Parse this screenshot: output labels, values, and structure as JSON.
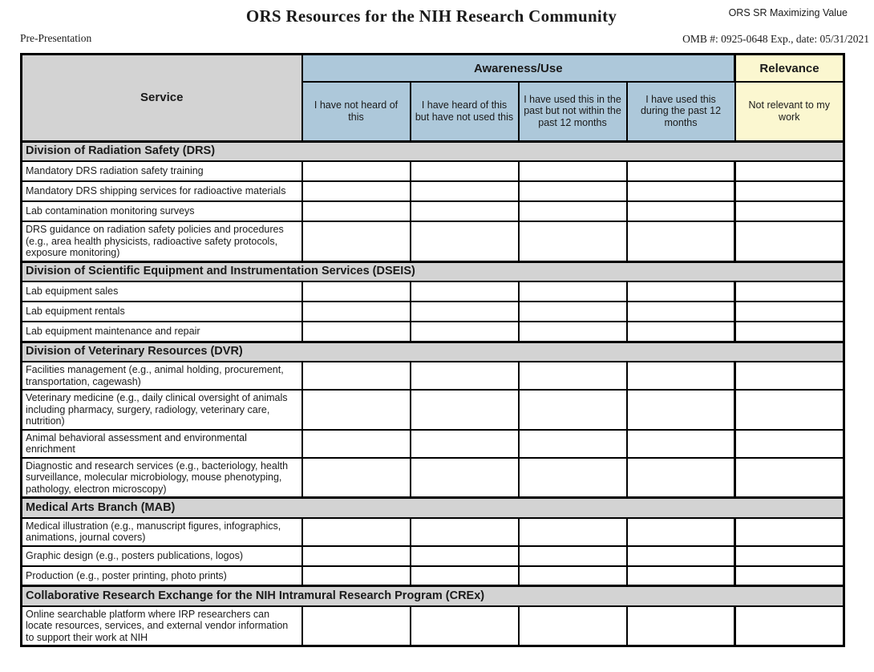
{
  "meta": {
    "pre_label": "Pre-Presentation",
    "title": "ORS Resources for the NIH Research Community",
    "corner_label": "ORS SR Maximizing Value",
    "omb": "OMB #: 0925-0648 Exp., date: 05/31/2021"
  },
  "table": {
    "service_header": "Service",
    "group_headers": {
      "awareness": "Awareness/Use",
      "relevance": "Relevance"
    },
    "option_columns": [
      "I have not heard of this",
      "I have heard of this but have not used this",
      "I have used this in the past but not within the past 12 months",
      "I have used this during the past 12 months",
      "Not relevant to my work"
    ],
    "sections": [
      {
        "title": "Division of Radiation Safety (DRS)",
        "rows": [
          "Mandatory DRS radiation safety training",
          "Mandatory DRS shipping services for radioactive materials",
          "Lab contamination monitoring surveys",
          "DRS guidance on radiation safety policies and procedures (e.g., area health physicists, radioactive safety protocols, exposure monitoring)"
        ]
      },
      {
        "title": "Division of Scientific Equipment and Instrumentation Services (DSEIS)",
        "rows": [
          "Lab equipment sales",
          "Lab equipment rentals",
          "Lab equipment maintenance and repair"
        ]
      },
      {
        "title": "Division of Veterinary Resources (DVR)",
        "rows": [
          "Facilities management (e.g., animal holding, procurement, transportation, cagewash)",
          "Veterinary medicine (e.g., daily clinical oversight of animals including pharmacy, surgery, radiology, veterinary care, nutrition)",
          "Animal behavioral assessment and environmental enrichment",
          "Diagnostic and research services (e.g., bacteriology, health surveillance, molecular microbiology, mouse phenotyping, pathology, electron microscopy)"
        ]
      },
      {
        "title": "Medical Arts Branch (MAB)",
        "rows": [
          "Medical illustration (e.g., manuscript figures, infographics, animations, journal covers)",
          "Graphic design (e.g., posters publications, logos)",
          "Production (e.g., poster printing, photo prints)"
        ]
      },
      {
        "title": "Collaborative Research Exchange for the NIH Intramural Research Program (CREx)",
        "rows": [
          "Online searchable platform where IRP researchers can locate resources, services, and external vendor information to support their work at NIH"
        ]
      }
    ]
  },
  "colors": {
    "awareness_header_bg": "#adc8da",
    "relevance_header_bg": "#fbf7d0",
    "section_bg": "#d3d3d3",
    "border": "#000000"
  }
}
